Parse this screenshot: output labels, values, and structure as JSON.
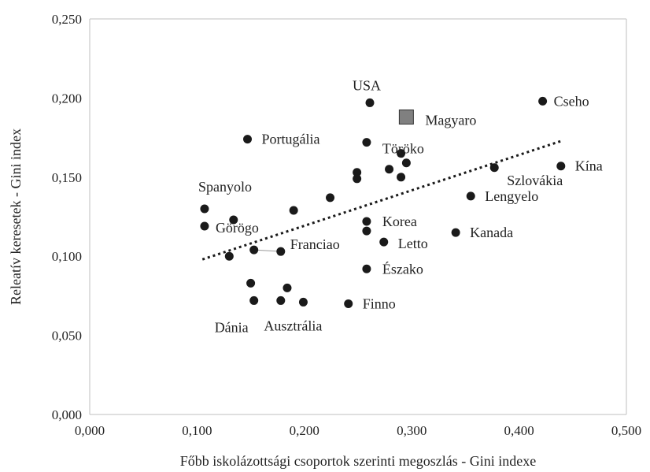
{
  "chart_data": {
    "type": "scatter",
    "title": "",
    "xlabel": "Főbb iskolázottsági csoportok szerinti megoszlás - Gini indexe",
    "ylabel": "Releatív keresetek - Gini index",
    "xlim": [
      0,
      0.5
    ],
    "ylim": [
      0,
      0.25
    ],
    "grid": false,
    "xticks": [
      "0,000",
      "0,100",
      "0,200",
      "0,300",
      "0,400",
      "0,500"
    ],
    "yticks": [
      "0,000",
      "0,050",
      "0,100",
      "0,150",
      "0,200",
      "0,250"
    ],
    "points": [
      {
        "x": 0.261,
        "y": 0.197,
        "label": "USA"
      },
      {
        "x": 0.422,
        "y": 0.198,
        "label": "Cseho"
      },
      {
        "x": 0.147,
        "y": 0.174,
        "label": "Portugália"
      },
      {
        "x": 0.258,
        "y": 0.172,
        "label": "Töröko"
      },
      {
        "x": 0.29,
        "y": 0.165,
        "label": ""
      },
      {
        "x": 0.295,
        "y": 0.159,
        "label": ""
      },
      {
        "x": 0.279,
        "y": 0.155,
        "label": ""
      },
      {
        "x": 0.29,
        "y": 0.15,
        "label": ""
      },
      {
        "x": 0.249,
        "y": 0.153,
        "label": ""
      },
      {
        "x": 0.249,
        "y": 0.149,
        "label": ""
      },
      {
        "x": 0.377,
        "y": 0.156,
        "label": "Szlovákia"
      },
      {
        "x": 0.439,
        "y": 0.157,
        "label": "Kína"
      },
      {
        "x": 0.355,
        "y": 0.138,
        "label": "Lengyelo"
      },
      {
        "x": 0.224,
        "y": 0.137,
        "label": ""
      },
      {
        "x": 0.107,
        "y": 0.13,
        "label": "Spanyolo"
      },
      {
        "x": 0.19,
        "y": 0.129,
        "label": ""
      },
      {
        "x": 0.134,
        "y": 0.123,
        "label": ""
      },
      {
        "x": 0.107,
        "y": 0.119,
        "label": "Görögo"
      },
      {
        "x": 0.258,
        "y": 0.122,
        "label": "Korea"
      },
      {
        "x": 0.258,
        "y": 0.116,
        "label": ""
      },
      {
        "x": 0.341,
        "y": 0.115,
        "label": "Kanada"
      },
      {
        "x": 0.274,
        "y": 0.109,
        "label": "Letto"
      },
      {
        "x": 0.153,
        "y": 0.104,
        "label": ""
      },
      {
        "x": 0.178,
        "y": 0.103,
        "label": "Franciao"
      },
      {
        "x": 0.13,
        "y": 0.1,
        "label": ""
      },
      {
        "x": 0.258,
        "y": 0.092,
        "label": "Észako"
      },
      {
        "x": 0.15,
        "y": 0.083,
        "label": ""
      },
      {
        "x": 0.184,
        "y": 0.08,
        "label": ""
      },
      {
        "x": 0.153,
        "y": 0.072,
        "label": "Dánia"
      },
      {
        "x": 0.178,
        "y": 0.072,
        "label": ""
      },
      {
        "x": 0.199,
        "y": 0.071,
        "label": "Ausztrália"
      },
      {
        "x": 0.241,
        "y": 0.07,
        "label": "Finno"
      }
    ],
    "highlight": {
      "x": 0.295,
      "y": 0.188,
      "label": "Magyaro",
      "color": "#808080"
    },
    "trendline": {
      "x": [
        0.105,
        0.44
      ],
      "y": [
        0.098,
        0.173
      ],
      "style": "dotted",
      "color": "#1a1a1a"
    }
  }
}
